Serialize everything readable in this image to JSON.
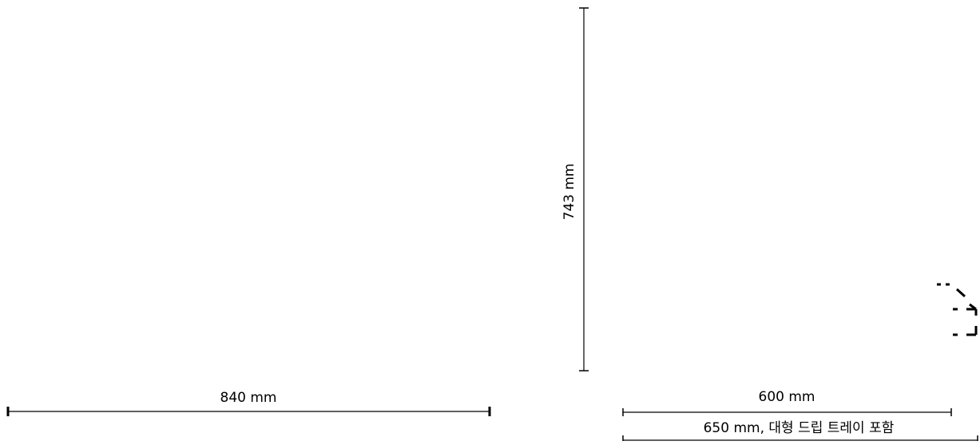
{
  "dimensions": {
    "width_label": "840 mm",
    "height_label": "743 mm",
    "depth_label": "600 mm",
    "depth_with_tray_label": "650 mm, 대형 드립 트레이 포함"
  },
  "colors": {
    "background": "#ffffff",
    "line": "#000000"
  },
  "icons": {
    "corner_marker": "dashed-corner-fragment"
  }
}
